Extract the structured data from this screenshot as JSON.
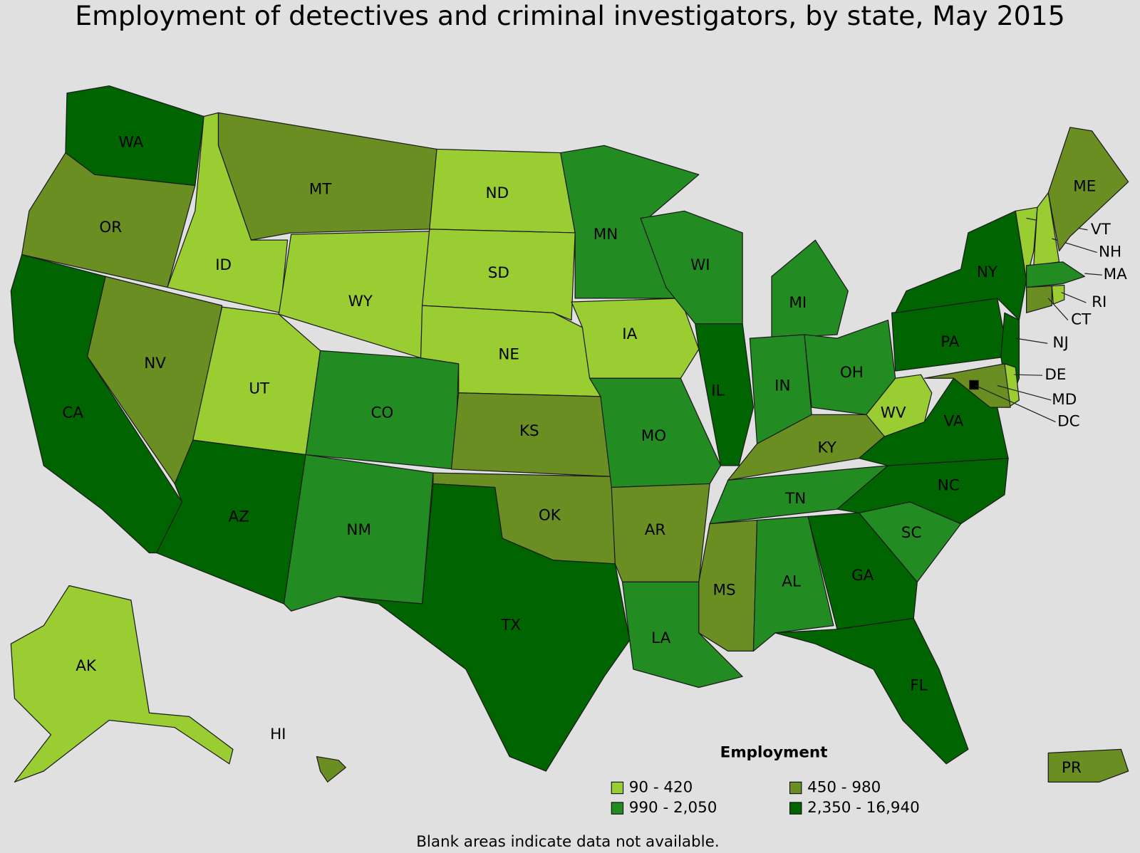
{
  "title": "Employment of detectives and criminal investigators, by state, May 2015",
  "states": [
    {
      "label": "WA",
      "color": "#006400"
    },
    {
      "label": "OR",
      "color": "#6b8e23"
    },
    {
      "label": "CA",
      "color": "#006400"
    },
    {
      "label": "NV",
      "color": "#6b8e23"
    },
    {
      "label": "ID",
      "color": "#9acd32"
    },
    {
      "label": "MT",
      "color": "#6b8e23"
    },
    {
      "label": "WY",
      "color": "#9acd32"
    },
    {
      "label": "UT",
      "color": "#9acd32"
    },
    {
      "label": "AZ",
      "color": "#006400"
    },
    {
      "label": "CO",
      "color": "#228b22"
    },
    {
      "label": "NM",
      "color": "#228b22"
    },
    {
      "label": "ND",
      "color": "#9acd32"
    },
    {
      "label": "SD",
      "color": "#9acd32"
    },
    {
      "label": "NE",
      "color": "#9acd32"
    },
    {
      "label": "KS",
      "color": "#6b8e23"
    },
    {
      "label": "OK",
      "color": "#6b8e23"
    },
    {
      "label": "TX",
      "color": "#006400"
    },
    {
      "label": "MN",
      "color": "#228b22"
    },
    {
      "label": "IA",
      "color": "#9acd32"
    },
    {
      "label": "MO",
      "color": "#228b22"
    },
    {
      "label": "AR",
      "color": "#6b8e23"
    },
    {
      "label": "LA",
      "color": "#228b22"
    },
    {
      "label": "WI",
      "color": "#228b22"
    },
    {
      "label": "IL",
      "color": "#006400"
    },
    {
      "label": "MI",
      "color": "#228b22"
    },
    {
      "label": "IN",
      "color": "#228b22"
    },
    {
      "label": "OH",
      "color": "#228b22"
    },
    {
      "label": "KY",
      "color": "#6b8e23"
    },
    {
      "label": "TN",
      "color": "#228b22"
    },
    {
      "label": "MS",
      "color": "#6b8e23"
    },
    {
      "label": "AL",
      "color": "#228b22"
    },
    {
      "label": "GA",
      "color": "#006400"
    },
    {
      "label": "FL",
      "color": "#006400"
    },
    {
      "label": "SC",
      "color": "#228b22"
    },
    {
      "label": "NC",
      "color": "#006400"
    },
    {
      "label": "VA",
      "color": "#006400"
    },
    {
      "label": "WV",
      "color": "#9acd32"
    },
    {
      "label": "PA",
      "color": "#006400"
    },
    {
      "label": "NY",
      "color": "#006400"
    },
    {
      "label": "NJ",
      "color": "#006400"
    },
    {
      "label": "DE",
      "color": "#9acd32"
    },
    {
      "label": "MD",
      "color": "#6b8e23"
    },
    {
      "label": "VT",
      "color": "#9acd32"
    },
    {
      "label": "NH",
      "color": "#9acd32"
    },
    {
      "label": "ME",
      "color": "#6b8e23"
    },
    {
      "label": "MA",
      "color": "#228b22"
    },
    {
      "label": "CT",
      "color": "#6b8e23"
    },
    {
      "label": "RI",
      "color": "#9acd32"
    },
    {
      "label": "DC",
      "color": "#000000"
    },
    {
      "label": "AK",
      "color": "#9acd32"
    },
    {
      "label": "HI",
      "color": "#6b8e23"
    },
    {
      "label": "PR",
      "color": "#6b8e23"
    }
  ],
  "legend": {
    "title": "Employment",
    "items": [
      {
        "label": "90 - 420",
        "color": "#9acd32"
      },
      {
        "label": "450 - 980",
        "color": "#6b8e23"
      },
      {
        "label": "990 - 2,050",
        "color": "#228b22"
      },
      {
        "label": "2,350 - 16,940",
        "color": "#006400"
      }
    ]
  },
  "note": "Blank areas indicate data not available."
}
